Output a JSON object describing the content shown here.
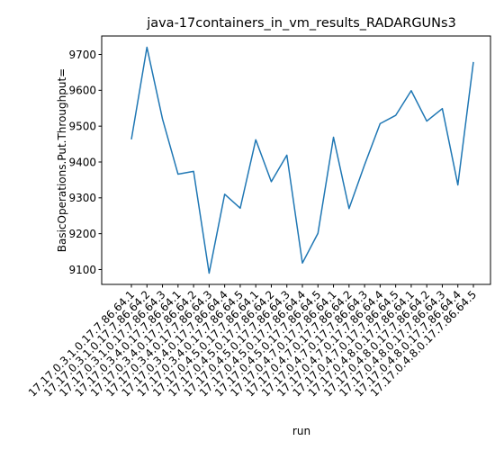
{
  "chart_data": {
    "type": "line",
    "title": "java-17containers_in_vm_results_RADARGUNs3",
    "xlabel": "run",
    "ylabel": "BasicOperations.Put.Throughput=",
    "categories": [
      "17.17.0.3.1.0.17.7.86.64.1",
      "17.17.0.3.1.0.17.7.86.64.2",
      "17.17.0.3.1.0.17.7.86.64.3",
      "17.17.0.3.4.0.17.7.86.64.1",
      "17.17.0.3.4.0.17.7.86.64.2",
      "17.17.0.3.4.0.17.7.86.64.3",
      "17.17.0.3.4.0.17.7.86.64.4",
      "17.17.0.3.4.0.17.7.86.64.5",
      "17.17.0.4.5.0.17.7.86.64.1",
      "17.17.0.4.5.0.17.7.86.64.2",
      "17.17.0.4.5.0.17.7.86.64.3",
      "17.17.0.4.5.0.17.7.86.64.4",
      "17.17.0.4.5.0.17.7.86.64.5",
      "17.17.0.4.7.0.17.7.86.64.1",
      "17.17.0.4.7.0.17.7.86.64.2",
      "17.17.0.4.7.0.17.7.86.64.3",
      "17.17.0.4.7.0.17.7.86.64.4",
      "17.17.0.4.7.0.17.7.86.64.5",
      "17.17.0.4.8.0.17.7.86.64.1",
      "17.17.0.4.8.0.17.7.86.64.2",
      "17.17.0.4.8.0.17.7.86.64.3",
      "17.17.0.4.8.0.17.7.86.64.4",
      "17.17.0.4.8.0.17.7.86.64.5"
    ],
    "series": [
      {
        "values": [
          9463,
          9720,
          9520,
          9366,
          9374,
          9090,
          9310,
          9271,
          9462,
          9345,
          9419,
          9118,
          9201,
          9469,
          9270,
          9392,
          9507,
          9530,
          9599,
          9514,
          9549,
          9336,
          9679
        ],
        "color": "#1f77b4"
      }
    ],
    "yticks": [
      9100,
      9200,
      9300,
      9400,
      9500,
      9600,
      9700
    ],
    "ylim": [
      9058.5,
      9751.5
    ],
    "grid": false,
    "legend": "none"
  }
}
